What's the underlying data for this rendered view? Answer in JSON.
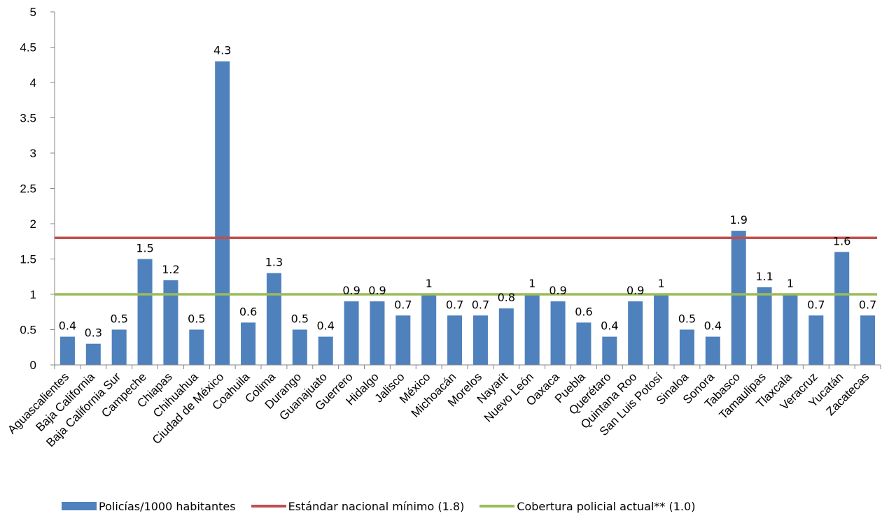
{
  "chart_data": {
    "type": "bar",
    "title": "",
    "xlabel": "",
    "ylabel": "",
    "ylim": [
      0,
      5
    ],
    "yticks": [
      "0",
      "0.5",
      "1",
      "1.5",
      "2",
      "2.5",
      "3",
      "3.5",
      "4",
      "4.5",
      "5"
    ],
    "grid": false,
    "legend_position": "bottom",
    "categories": [
      "Aguascalientes",
      "Baja California",
      "Baja California Sur",
      "Campeche",
      "Chiapas",
      "Chihuahua",
      "Ciudad de México",
      "Coahuila",
      "Colima",
      "Durango",
      "Guanajuato",
      "Guerrero",
      "Hidalgo",
      "Jalisco",
      "México",
      "Michoacán",
      "Morelos",
      "Nayarit",
      "Nuevo León",
      "Oaxaca",
      "Puebla",
      "Querétaro",
      "Quintana Roo",
      "San Luis Potosí",
      "Sinaloa",
      "Sonora",
      "Tabasco",
      "Tamaulipas",
      "Tlaxcala",
      "Veracruz",
      "Yucatán",
      "Zacatecas"
    ],
    "series": [
      {
        "name": "Policías/1000 habitantes",
        "kind": "bar",
        "color": "#4f81bd",
        "values": [
          0.4,
          0.3,
          0.5,
          1.5,
          1.2,
          0.5,
          4.3,
          0.6,
          1.3,
          0.5,
          0.4,
          0.9,
          0.9,
          0.7,
          1,
          0.7,
          0.7,
          0.8,
          1,
          0.9,
          0.6,
          0.4,
          0.9,
          1,
          0.5,
          0.4,
          1.9,
          1.1,
          1,
          0.7,
          1.6,
          0.7
        ],
        "labels": [
          "0.4",
          "0.3",
          "0.5",
          "1.5",
          "1.2",
          "0.5",
          "4.3",
          "0.6",
          "1.3",
          "0.5",
          "0.4",
          "0.9",
          "0.9",
          "0.7",
          "1",
          "0.7",
          "0.7",
          "0.8",
          "1",
          "0.9",
          "0.6",
          "0.4",
          "0.9",
          "1",
          "0.5",
          "0.4",
          "1.9",
          "1.1",
          "1",
          "0.7",
          "1.6",
          "0.7"
        ]
      },
      {
        "name": "Estándar nacional mínimo (1.8)",
        "kind": "hline",
        "color": "#c0504d",
        "value": 1.8
      },
      {
        "name": "Cobertura policial actual** (1.0)",
        "kind": "hline",
        "color": "#9bbb59",
        "value": 1.0
      }
    ]
  }
}
